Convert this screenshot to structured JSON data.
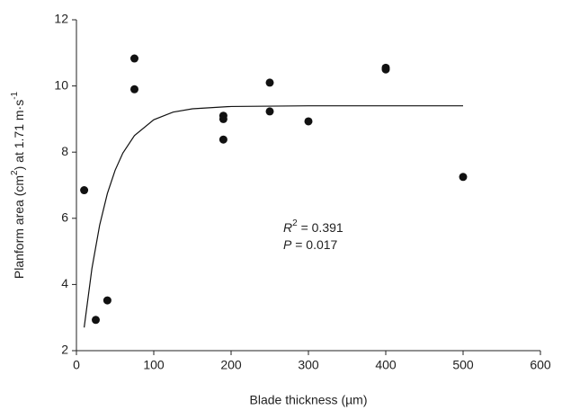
{
  "chart_data": {
    "type": "scatter",
    "x_label": "Blade thickness (µm)",
    "y_label": [
      "Planform area (cm",
      "2",
      ") at 1.71 m·s",
      "-1"
    ],
    "annotations": [
      [
        "R",
        "2",
        " = 0.391"
      ],
      [
        "P",
        " = 0.017"
      ]
    ],
    "xlim": [
      0,
      600
    ],
    "xticks": [
      0,
      100,
      200,
      300,
      400,
      500,
      600
    ],
    "ylim": [
      2,
      12
    ],
    "yticks": [
      2,
      4,
      6,
      8,
      10,
      12
    ],
    "grid": false,
    "series": [
      {
        "kind": "points",
        "color": "#111111",
        "x": [
          10,
          25,
          40,
          75,
          75,
          190,
          190,
          190,
          250,
          250,
          300,
          400,
          400,
          500
        ],
        "values": [
          6.85,
          2.93,
          3.52,
          10.83,
          9.9,
          9.1,
          9.0,
          8.38,
          10.1,
          9.23,
          8.93,
          10.5,
          10.55,
          7.25
        ]
      },
      {
        "kind": "line",
        "color": "#111111",
        "x": [
          10,
          20,
          30,
          40,
          50,
          60,
          75,
          100,
          125,
          150,
          200,
          300,
          400,
          500
        ],
        "values": [
          2.7,
          4.48,
          5.79,
          6.75,
          7.45,
          7.97,
          8.5,
          8.98,
          9.21,
          9.31,
          9.38,
          9.4,
          9.4,
          9.4
        ]
      }
    ]
  }
}
